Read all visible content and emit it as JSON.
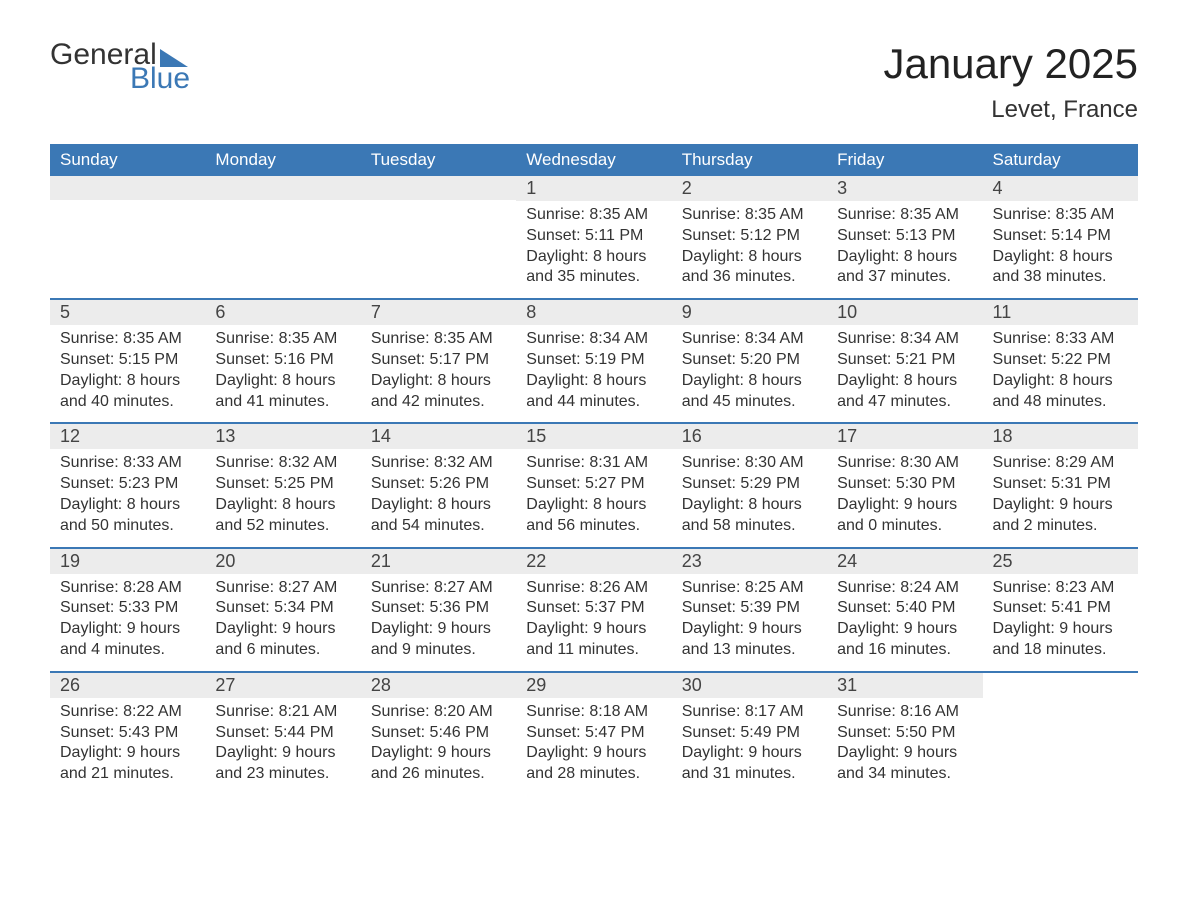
{
  "logo": {
    "word1": "General",
    "word2": "Blue"
  },
  "title": "January 2025",
  "location": "Levet, France",
  "colors": {
    "header_bg": "#3b78b5",
    "header_text": "#ffffff",
    "daynum_bg": "#ececec",
    "body_text": "#333333",
    "logo_blue": "#3b78b5",
    "page_bg": "#ffffff"
  },
  "day_headers": [
    "Sunday",
    "Monday",
    "Tuesday",
    "Wednesday",
    "Thursday",
    "Friday",
    "Saturday"
  ],
  "weeks": [
    [
      null,
      null,
      null,
      {
        "n": "1",
        "sr": "8:35 AM",
        "ss": "5:11 PM",
        "dl": "8 hours and 35 minutes."
      },
      {
        "n": "2",
        "sr": "8:35 AM",
        "ss": "5:12 PM",
        "dl": "8 hours and 36 minutes."
      },
      {
        "n": "3",
        "sr": "8:35 AM",
        "ss": "5:13 PM",
        "dl": "8 hours and 37 minutes."
      },
      {
        "n": "4",
        "sr": "8:35 AM",
        "ss": "5:14 PM",
        "dl": "8 hours and 38 minutes."
      }
    ],
    [
      {
        "n": "5",
        "sr": "8:35 AM",
        "ss": "5:15 PM",
        "dl": "8 hours and 40 minutes."
      },
      {
        "n": "6",
        "sr": "8:35 AM",
        "ss": "5:16 PM",
        "dl": "8 hours and 41 minutes."
      },
      {
        "n": "7",
        "sr": "8:35 AM",
        "ss": "5:17 PM",
        "dl": "8 hours and 42 minutes."
      },
      {
        "n": "8",
        "sr": "8:34 AM",
        "ss": "5:19 PM",
        "dl": "8 hours and 44 minutes."
      },
      {
        "n": "9",
        "sr": "8:34 AM",
        "ss": "5:20 PM",
        "dl": "8 hours and 45 minutes."
      },
      {
        "n": "10",
        "sr": "8:34 AM",
        "ss": "5:21 PM",
        "dl": "8 hours and 47 minutes."
      },
      {
        "n": "11",
        "sr": "8:33 AM",
        "ss": "5:22 PM",
        "dl": "8 hours and 48 minutes."
      }
    ],
    [
      {
        "n": "12",
        "sr": "8:33 AM",
        "ss": "5:23 PM",
        "dl": "8 hours and 50 minutes."
      },
      {
        "n": "13",
        "sr": "8:32 AM",
        "ss": "5:25 PM",
        "dl": "8 hours and 52 minutes."
      },
      {
        "n": "14",
        "sr": "8:32 AM",
        "ss": "5:26 PM",
        "dl": "8 hours and 54 minutes."
      },
      {
        "n": "15",
        "sr": "8:31 AM",
        "ss": "5:27 PM",
        "dl": "8 hours and 56 minutes."
      },
      {
        "n": "16",
        "sr": "8:30 AM",
        "ss": "5:29 PM",
        "dl": "8 hours and 58 minutes."
      },
      {
        "n": "17",
        "sr": "8:30 AM",
        "ss": "5:30 PM",
        "dl": "9 hours and 0 minutes."
      },
      {
        "n": "18",
        "sr": "8:29 AM",
        "ss": "5:31 PM",
        "dl": "9 hours and 2 minutes."
      }
    ],
    [
      {
        "n": "19",
        "sr": "8:28 AM",
        "ss": "5:33 PM",
        "dl": "9 hours and 4 minutes."
      },
      {
        "n": "20",
        "sr": "8:27 AM",
        "ss": "5:34 PM",
        "dl": "9 hours and 6 minutes."
      },
      {
        "n": "21",
        "sr": "8:27 AM",
        "ss": "5:36 PM",
        "dl": "9 hours and 9 minutes."
      },
      {
        "n": "22",
        "sr": "8:26 AM",
        "ss": "5:37 PM",
        "dl": "9 hours and 11 minutes."
      },
      {
        "n": "23",
        "sr": "8:25 AM",
        "ss": "5:39 PM",
        "dl": "9 hours and 13 minutes."
      },
      {
        "n": "24",
        "sr": "8:24 AM",
        "ss": "5:40 PM",
        "dl": "9 hours and 16 minutes."
      },
      {
        "n": "25",
        "sr": "8:23 AM",
        "ss": "5:41 PM",
        "dl": "9 hours and 18 minutes."
      }
    ],
    [
      {
        "n": "26",
        "sr": "8:22 AM",
        "ss": "5:43 PM",
        "dl": "9 hours and 21 minutes."
      },
      {
        "n": "27",
        "sr": "8:21 AM",
        "ss": "5:44 PM",
        "dl": "9 hours and 23 minutes."
      },
      {
        "n": "28",
        "sr": "8:20 AM",
        "ss": "5:46 PM",
        "dl": "9 hours and 26 minutes."
      },
      {
        "n": "29",
        "sr": "8:18 AM",
        "ss": "5:47 PM",
        "dl": "9 hours and 28 minutes."
      },
      {
        "n": "30",
        "sr": "8:17 AM",
        "ss": "5:49 PM",
        "dl": "9 hours and 31 minutes."
      },
      {
        "n": "31",
        "sr": "8:16 AM",
        "ss": "5:50 PM",
        "dl": "9 hours and 34 minutes."
      },
      null
    ]
  ],
  "labels": {
    "sunrise": "Sunrise: ",
    "sunset": "Sunset: ",
    "daylight": "Daylight: "
  }
}
